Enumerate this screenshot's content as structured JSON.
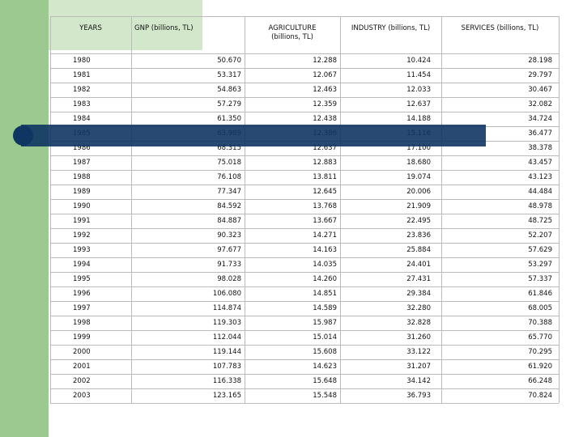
{
  "table": {
    "headers": [
      "YEARS",
      "GNP (billions, TL)",
      "AGRICULTURE (billions, TL)",
      "INDUSTRY (billions, TL)",
      "SERVICES (billions, TL)"
    ],
    "rows": [
      [
        "1980",
        "50.670",
        "12.288",
        "10.424",
        "28.198"
      ],
      [
        "1981",
        "53.317",
        "12.067",
        "11.454",
        "29.797"
      ],
      [
        "1982",
        "54.863",
        "12.463",
        "12.033",
        "30.467"
      ],
      [
        "1983",
        "57.279",
        "12.359",
        "12.637",
        "32.082"
      ],
      [
        "1984",
        "61.350",
        "12.438",
        "14.188",
        "34.724"
      ],
      [
        "1985",
        "63.989",
        "12.386",
        "15.116",
        "36.477"
      ],
      [
        "1986",
        "68.315",
        "12.637",
        "17.100",
        "38.378"
      ],
      [
        "1987",
        "75.018",
        "12.883",
        "18.680",
        "43.457"
      ],
      [
        "1988",
        "76.108",
        "13.811",
        "19.074",
        "43.123"
      ],
      [
        "1989",
        "77.347",
        "12.645",
        "20.006",
        "44.484"
      ],
      [
        "1990",
        "84.592",
        "13.768",
        "21.909",
        "48.978"
      ],
      [
        "1991",
        "84.887",
        "13.667",
        "22.495",
        "48.725"
      ],
      [
        "1992",
        "90.323",
        "14.271",
        "23.836",
        "52.207"
      ],
      [
        "1993",
        "97.677",
        "14.163",
        "25.884",
        "57.629"
      ],
      [
        "1994",
        "91.733",
        "14.035",
        "24.401",
        "53.297"
      ],
      [
        "1995",
        "98.028",
        "14.260",
        "27.431",
        "57.337"
      ],
      [
        "1996",
        "106.080",
        "14.851",
        "29.384",
        "61.846"
      ],
      [
        "1997",
        "114.874",
        "14.589",
        "32.280",
        "68.005"
      ],
      [
        "1998",
        "119.303",
        "15.987",
        "32.828",
        "70.388"
      ],
      [
        "1999",
        "112.044",
        "15.014",
        "31.260",
        "65.770"
      ],
      [
        "2000",
        "119.144",
        "15.608",
        "33.122",
        "70.295"
      ],
      [
        "2001",
        "107.783",
        "14.623",
        "31.207",
        "61.920"
      ],
      [
        "2002",
        "116.338",
        "15.648",
        "34.142",
        "66.248"
      ],
      [
        "2003",
        "123.165",
        "15.548",
        "36.793",
        "70.824"
      ]
    ]
  }
}
